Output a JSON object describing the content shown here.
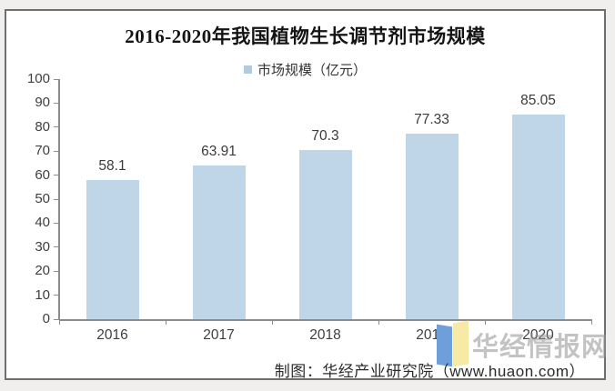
{
  "page": {
    "title": "2016-2020年我国植物生长调节剂市场规模",
    "legend_label": "市场规模（亿元）",
    "credit": "制图：华经产业研究院（www.huaon.com）",
    "watermark_text": "华经情报网"
  },
  "colors": {
    "bar": "#bed6e8",
    "legend_marker": "#b2cbdd",
    "axis": "#8c8c8c",
    "logo_blue": "#6f9fdb",
    "logo_yellow": "#f7e9a6"
  },
  "chart_data": {
    "type": "bar",
    "title": "2016-2020年我国植物生长调节剂市场规模",
    "categories": [
      "2016",
      "2017",
      "2018",
      "2019",
      "2020"
    ],
    "series": [
      {
        "name": "市场规模（亿元）",
        "values": [
          58.1,
          63.91,
          70.3,
          77.33,
          85.05
        ]
      }
    ],
    "xlabel": "",
    "ylabel": "",
    "ylim": [
      0,
      100
    ],
    "ytick_step": 10,
    "grid": false,
    "legend_position": "top",
    "data_labels": true
  }
}
